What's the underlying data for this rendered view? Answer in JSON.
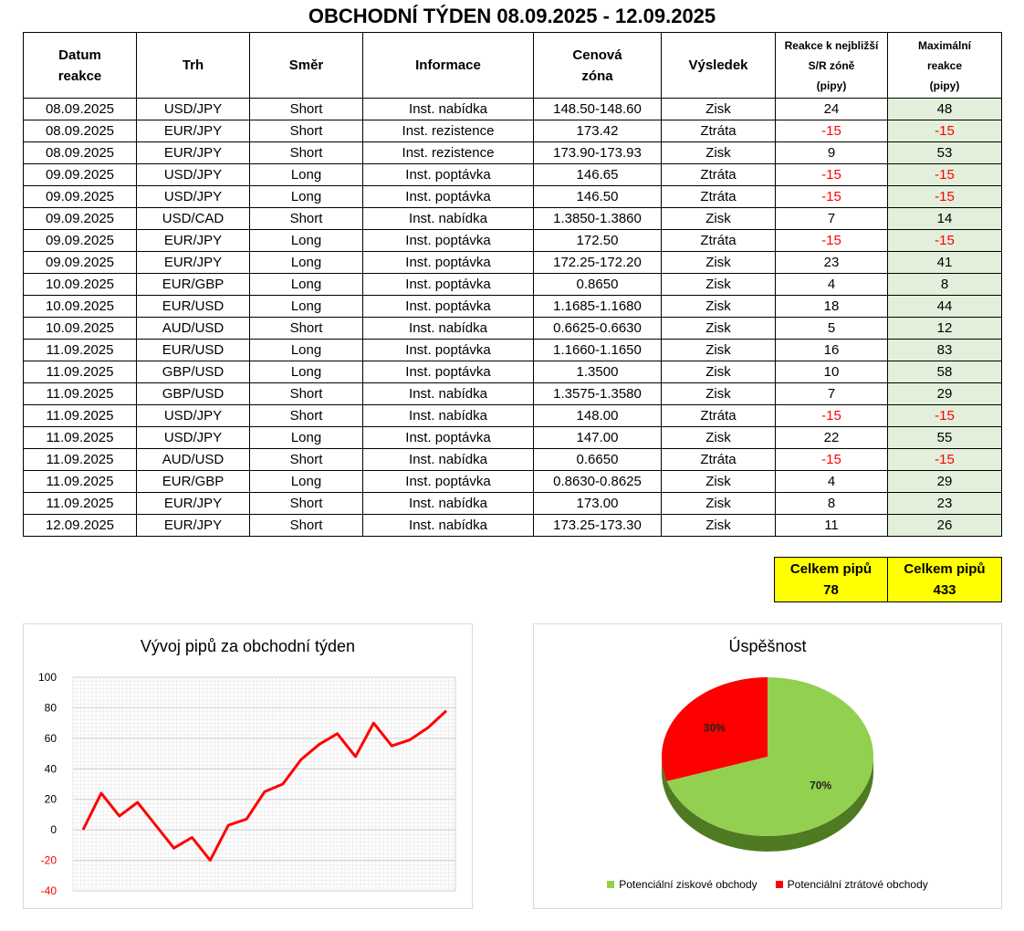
{
  "title": "OBCHODNÍ TÝDEN 08.09.2025 - 12.09.2025",
  "table": {
    "headers": {
      "date": [
        "Datum",
        "reakce"
      ],
      "market": "Trh",
      "direction": "Směr",
      "info": "Informace",
      "zone": [
        "Cenová",
        "zóna"
      ],
      "result": "Výsledek",
      "reaction": [
        "Reakce k nejbližší",
        "S/R zóně",
        "(pipy)"
      ],
      "max": [
        "Maximální",
        "reakce",
        "(pipy)"
      ]
    },
    "rows": [
      {
        "date": "08.09.2025",
        "market": "USD/JPY",
        "direction": "Short",
        "info": "Inst. nabídka",
        "zone": "148.50-148.60",
        "result": "Zisk",
        "reaction": "24",
        "max": "48"
      },
      {
        "date": "08.09.2025",
        "market": "EUR/JPY",
        "direction": "Short",
        "info": "Inst. rezistence",
        "zone": "173.42",
        "result": "Ztráta",
        "reaction": "-15",
        "max": "-15"
      },
      {
        "date": "08.09.2025",
        "market": "EUR/JPY",
        "direction": "Short",
        "info": "Inst. rezistence",
        "zone": "173.90-173.93",
        "result": "Zisk",
        "reaction": "9",
        "max": "53"
      },
      {
        "date": "09.09.2025",
        "market": "USD/JPY",
        "direction": "Long",
        "info": "Inst. poptávka",
        "zone": "146.65",
        "result": "Ztráta",
        "reaction": "-15",
        "max": "-15"
      },
      {
        "date": "09.09.2025",
        "market": "USD/JPY",
        "direction": "Long",
        "info": "Inst. poptávka",
        "zone": "146.50",
        "result": "Ztráta",
        "reaction": "-15",
        "max": "-15"
      },
      {
        "date": "09.09.2025",
        "market": "USD/CAD",
        "direction": "Short",
        "info": "Inst. nabídka",
        "zone": "1.3850-1.3860",
        "result": "Zisk",
        "reaction": "7",
        "max": "14"
      },
      {
        "date": "09.09.2025",
        "market": "EUR/JPY",
        "direction": "Long",
        "info": "Inst. poptávka",
        "zone": "172.50",
        "result": "Ztráta",
        "reaction": "-15",
        "max": "-15"
      },
      {
        "date": "09.09.2025",
        "market": "EUR/JPY",
        "direction": "Long",
        "info": "Inst. poptávka",
        "zone": "172.25-172.20",
        "result": "Zisk",
        "reaction": "23",
        "max": "41"
      },
      {
        "date": "10.09.2025",
        "market": "EUR/GBP",
        "direction": "Long",
        "info": "Inst. poptávka",
        "zone": "0.8650",
        "result": "Zisk",
        "reaction": "4",
        "max": "8"
      },
      {
        "date": "10.09.2025",
        "market": "EUR/USD",
        "direction": "Long",
        "info": "Inst. poptávka",
        "zone": "1.1685-1.1680",
        "result": "Zisk",
        "reaction": "18",
        "max": "44"
      },
      {
        "date": "10.09.2025",
        "market": "AUD/USD",
        "direction": "Short",
        "info": "Inst. nabídka",
        "zone": "0.6625-0.6630",
        "result": "Zisk",
        "reaction": "5",
        "max": "12"
      },
      {
        "date": "11.09.2025",
        "market": "EUR/USD",
        "direction": "Long",
        "info": "Inst. poptávka",
        "zone": "1.1660-1.1650",
        "result": "Zisk",
        "reaction": "16",
        "max": "83"
      },
      {
        "date": "11.09.2025",
        "market": "GBP/USD",
        "direction": "Long",
        "info": "Inst. poptávka",
        "zone": "1.3500",
        "result": "Zisk",
        "reaction": "10",
        "max": "58"
      },
      {
        "date": "11.09.2025",
        "market": "GBP/USD",
        "direction": "Short",
        "info": "Inst. nabídka",
        "zone": "1.3575-1.3580",
        "result": "Zisk",
        "reaction": "7",
        "max": "29"
      },
      {
        "date": "11.09.2025",
        "market": "USD/JPY",
        "direction": "Short",
        "info": "Inst. nabídka",
        "zone": "148.00",
        "result": "Ztráta",
        "reaction": "-15",
        "max": "-15"
      },
      {
        "date": "11.09.2025",
        "market": "USD/JPY",
        "direction": "Long",
        "info": "Inst. poptávka",
        "zone": "147.00",
        "result": "Zisk",
        "reaction": "22",
        "max": "55"
      },
      {
        "date": "11.09.2025",
        "market": "AUD/USD",
        "direction": "Short",
        "info": "Inst. nabídka",
        "zone": "0.6650",
        "result": "Ztráta",
        "reaction": "-15",
        "max": "-15"
      },
      {
        "date": "11.09.2025",
        "market": "EUR/GBP",
        "direction": "Long",
        "info": "Inst. poptávka",
        "zone": "0.8630-0.8625",
        "result": "Zisk",
        "reaction": "4",
        "max": "29"
      },
      {
        "date": "11.09.2025",
        "market": "EUR/JPY",
        "direction": "Short",
        "info": "Inst. nabídka",
        "zone": "173.00",
        "result": "Zisk",
        "reaction": "8",
        "max": "23"
      },
      {
        "date": "12.09.2025",
        "market": "EUR/JPY",
        "direction": "Short",
        "info": "Inst. nabídka",
        "zone": "173.25-173.30",
        "result": "Zisk",
        "reaction": "11",
        "max": "26"
      }
    ]
  },
  "totals": {
    "reaction_label": "Celkem pipů",
    "reaction_value": "78",
    "max_label": "Celkem pipů",
    "max_value": "433"
  },
  "colors": {
    "negative": "#ff0000",
    "max_fill": "#e2efda",
    "totals_fill": "#ffff00",
    "line": "#ff0000",
    "win": "#92d050",
    "loss": "#ff0000"
  },
  "chart_data": [
    {
      "type": "line",
      "title": "Vývoj pipů za obchodní týden",
      "x": [
        0,
        1,
        2,
        3,
        4,
        5,
        6,
        7,
        8,
        9,
        10,
        11,
        12,
        13,
        14,
        15,
        16,
        17,
        18,
        19,
        20
      ],
      "series": [
        {
          "values": [
            0,
            24,
            9,
            18,
            3,
            -12,
            -5,
            -20,
            3,
            7,
            25,
            30,
            46,
            56,
            63,
            48,
            70,
            55,
            59,
            67,
            78
          ]
        }
      ],
      "ylim": [
        -40,
        100
      ],
      "yticks": [
        "100",
        "80",
        "60",
        "40",
        "20",
        "0",
        "-20",
        "-40"
      ],
      "ytick_values": [
        100,
        80,
        60,
        40,
        20,
        0,
        -20,
        -40
      ],
      "grid": true,
      "legend": "none"
    },
    {
      "type": "pie",
      "title": "Úspěšnost",
      "slices": [
        {
          "name": "Potenciální ziskové obchody",
          "value": 70,
          "label": "70%"
        },
        {
          "name": "Potenciální ztrátové obchody",
          "value": 30,
          "label": "30%"
        }
      ],
      "legend": "bottom"
    }
  ]
}
